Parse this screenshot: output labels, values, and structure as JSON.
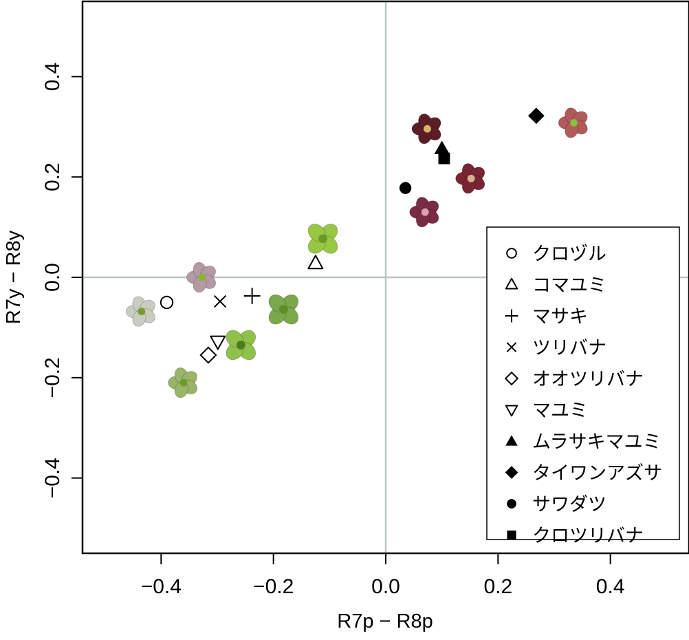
{
  "chart_data": {
    "type": "scatter",
    "xlabel": "R7p − R8p",
    "ylabel": "R7y − R8y",
    "xlim": [
      -0.54,
      0.54
    ],
    "ylim": [
      -0.55,
      0.55
    ],
    "x_ticks": [
      -0.4,
      -0.2,
      0.0,
      0.2,
      0.4
    ],
    "y_ticks": [
      -0.4,
      -0.2,
      0.0,
      0.2,
      0.4
    ],
    "x_tick_labels": [
      "−0.4",
      "−0.2",
      "0.0",
      "0.2",
      "0.4"
    ],
    "y_tick_labels": [
      "−0.4",
      "−0.2",
      "0.0",
      "0.2",
      "0.4"
    ],
    "reference_lines": {
      "x": 0,
      "y": 0,
      "color": "#b8c6c6"
    },
    "legend_position": "bottom-right",
    "series": [
      {
        "name": "クロヅル",
        "marker": "open-circle",
        "x": -0.39,
        "y": -0.05
      },
      {
        "name": "コマユミ",
        "marker": "open-triangle-up",
        "x": -0.125,
        "y": 0.028
      },
      {
        "name": "マサキ",
        "marker": "plus",
        "x": -0.238,
        "y": -0.037
      },
      {
        "name": "ツリバナ",
        "marker": "cross",
        "x": -0.295,
        "y": -0.048
      },
      {
        "name": "オオツリバナ",
        "marker": "open-diamond",
        "x": -0.316,
        "y": -0.155
      },
      {
        "name": "マユミ",
        "marker": "open-triangle-down",
        "x": -0.299,
        "y": -0.128
      },
      {
        "name": "ムラサキマユミ",
        "marker": "filled-triangle-up",
        "x": 0.1,
        "y": 0.257
      },
      {
        "name": "タイワンアズサ",
        "marker": "filled-diamond",
        "x": 0.268,
        "y": 0.322
      },
      {
        "name": "サワダツ",
        "marker": "filled-circle",
        "x": 0.035,
        "y": 0.178
      },
      {
        "name": "クロツリバナ",
        "marker": "filled-square",
        "x": 0.104,
        "y": 0.237
      }
    ],
    "flower_images": [
      {
        "x": -0.435,
        "y": -0.068,
        "petals": 5,
        "petal_color": "#c9ccc0",
        "center_color": "#7a9a2e"
      },
      {
        "x": -0.327,
        "y": 0.0,
        "petals": 5,
        "petal_color": "#b49aa4",
        "center_color": "#8db23c"
      },
      {
        "x": -0.36,
        "y": -0.21,
        "petals": 5,
        "petal_color": "#9ab46a",
        "center_color": "#6e9a2c"
      },
      {
        "x": -0.258,
        "y": -0.135,
        "petals": 4,
        "petal_color": "#8fc24a",
        "center_color": "#4f7a1e"
      },
      {
        "x": -0.182,
        "y": -0.064,
        "petals": 4,
        "petal_color": "#7aa84a",
        "center_color": "#5e8e26"
      },
      {
        "x": -0.112,
        "y": 0.077,
        "petals": 4,
        "petal_color": "#96c844",
        "center_color": "#6a9a26"
      },
      {
        "x": 0.074,
        "y": 0.296,
        "petals": 5,
        "petal_color": "#5c1e26",
        "center_color": "#d6b46a"
      },
      {
        "x": 0.07,
        "y": 0.13,
        "petals": 5,
        "petal_color": "#7a2c44",
        "center_color": "#e0a0b4"
      },
      {
        "x": 0.152,
        "y": 0.197,
        "petals": 5,
        "petal_color": "#7a2434",
        "center_color": "#d4b48a"
      },
      {
        "x": 0.335,
        "y": 0.308,
        "petals": 5,
        "petal_color": "#b05a5a",
        "center_color": "#88c040"
      }
    ]
  }
}
